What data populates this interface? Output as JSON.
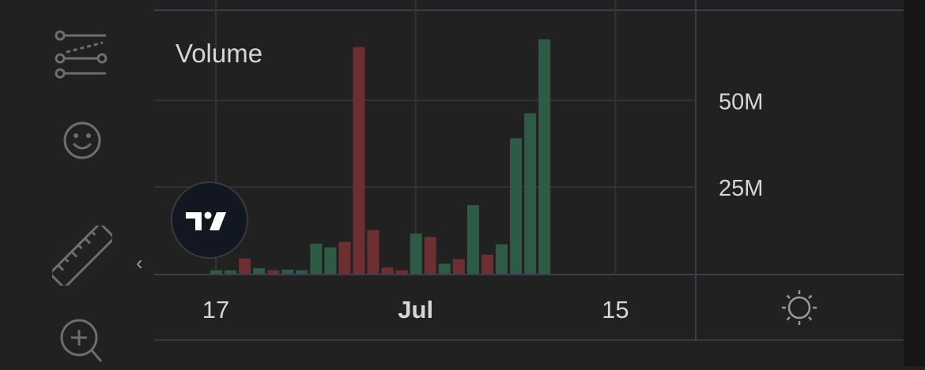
{
  "chart_data": {
    "type": "bar",
    "title": "Volume",
    "x_ticks": [
      {
        "label": "17",
        "index": 0,
        "bold": false
      },
      {
        "label": "Jul",
        "index": 14,
        "bold": true
      },
      {
        "label": "15",
        "index": 28,
        "bold": false
      }
    ],
    "y_ticks": [
      {
        "label": "50M",
        "value": 50000000
      },
      {
        "label": "25M",
        "value": 25000000
      }
    ],
    "ylim": [
      0,
      76000000
    ],
    "grid": true,
    "colors": {
      "up": "#2e5b45",
      "down": "#6e2f33"
    },
    "bars": [
      {
        "value": 1000000,
        "dir": "up"
      },
      {
        "value": 1000000,
        "dir": "up"
      },
      {
        "value": 4400000,
        "dir": "down"
      },
      {
        "value": 1600000,
        "dir": "up"
      },
      {
        "value": 1000000,
        "dir": "down"
      },
      {
        "value": 1200000,
        "dir": "up"
      },
      {
        "value": 1000000,
        "dir": "up"
      },
      {
        "value": 8700000,
        "dir": "up"
      },
      {
        "value": 7600000,
        "dir": "up"
      },
      {
        "value": 9200000,
        "dir": "down"
      },
      {
        "value": 65400000,
        "dir": "down"
      },
      {
        "value": 12600000,
        "dir": "down"
      },
      {
        "value": 1800000,
        "dir": "down"
      },
      {
        "value": 1000000,
        "dir": "down"
      },
      {
        "value": 11600000,
        "dir": "up"
      },
      {
        "value": 10600000,
        "dir": "down"
      },
      {
        "value": 2900000,
        "dir": "up"
      },
      {
        "value": 4200000,
        "dir": "down"
      },
      {
        "value": 19800000,
        "dir": "up"
      },
      {
        "value": 5500000,
        "dir": "down"
      },
      {
        "value": 8500000,
        "dir": "up"
      },
      {
        "value": 39100000,
        "dir": "up"
      },
      {
        "value": 46300000,
        "dir": "up"
      },
      {
        "value": 67600000,
        "dir": "up"
      }
    ]
  },
  "colors": {
    "background": "#212121",
    "grid": "#333333",
    "axis_text": "#d6d6d6",
    "icon": "#6e6e6e"
  },
  "icons": [
    "trend-lines-icon",
    "smiley-icon",
    "ruler-icon",
    "zoom-in-icon",
    "collapse-chevron-icon",
    "tradingview-logo-icon",
    "settings-sun-icon"
  ],
  "toolbar": {
    "collapse_glyph": "‹"
  }
}
